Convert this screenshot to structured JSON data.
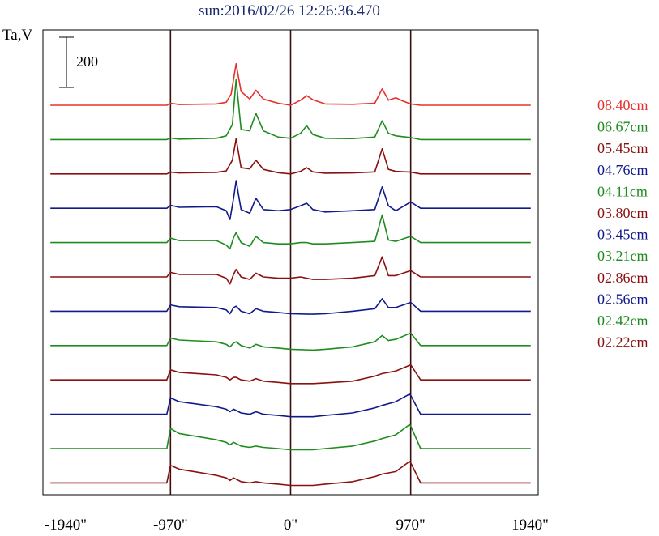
{
  "chart_data": {
    "type": "line",
    "title": "sun:2016/02/26 12:26:36.470",
    "ylabel": "Ta,V",
    "scale_bar_label": "200",
    "xlim": [
      -2000,
      2000
    ],
    "x_ticks": [
      {
        "value": -1940,
        "label": "-1940\""
      },
      {
        "value": -970,
        "label": "-970\""
      },
      {
        "value": 0,
        "label": "0\""
      },
      {
        "value": 970,
        "label": "970\""
      },
      {
        "value": 1940,
        "label": "1940\""
      }
    ],
    "vertical_markers": [
      -970,
      0,
      970
    ],
    "grid": false,
    "legend_position": "right",
    "series": [
      {
        "name": "08.40cm",
        "color": "#e8302a",
        "points": [
          [
            -1940,
            0
          ],
          [
            -1000,
            0
          ],
          [
            -970,
            8
          ],
          [
            -900,
            3
          ],
          [
            -600,
            5
          ],
          [
            -520,
            12
          ],
          [
            -480,
            45
          ],
          [
            -440,
            165
          ],
          [
            -400,
            55
          ],
          [
            -330,
            25
          ],
          [
            -280,
            60
          ],
          [
            -220,
            25
          ],
          [
            -100,
            8
          ],
          [
            0,
            0
          ],
          [
            80,
            20
          ],
          [
            130,
            38
          ],
          [
            180,
            22
          ],
          [
            280,
            5
          ],
          [
            500,
            4
          ],
          [
            680,
            8
          ],
          [
            740,
            65
          ],
          [
            790,
            20
          ],
          [
            850,
            30
          ],
          [
            900,
            18
          ],
          [
            970,
            5
          ],
          [
            1050,
            0
          ],
          [
            1940,
            0
          ]
        ]
      },
      {
        "name": "06.67cm",
        "color": "#1e8c1e",
        "points": [
          [
            -1940,
            0
          ],
          [
            -1000,
            0
          ],
          [
            -970,
            6
          ],
          [
            -900,
            2
          ],
          [
            -600,
            5
          ],
          [
            -520,
            15
          ],
          [
            -470,
            60
          ],
          [
            -440,
            240
          ],
          [
            -400,
            40
          ],
          [
            -330,
            35
          ],
          [
            -280,
            105
          ],
          [
            -220,
            35
          ],
          [
            -100,
            10
          ],
          [
            0,
            5
          ],
          [
            80,
            25
          ],
          [
            130,
            55
          ],
          [
            180,
            20
          ],
          [
            280,
            5
          ],
          [
            500,
            4
          ],
          [
            680,
            10
          ],
          [
            740,
            75
          ],
          [
            790,
            25
          ],
          [
            850,
            15
          ],
          [
            970,
            8
          ],
          [
            1050,
            0
          ],
          [
            1940,
            0
          ]
        ]
      },
      {
        "name": "05.45cm",
        "color": "#8a1010",
        "points": [
          [
            -1940,
            0
          ],
          [
            -1000,
            0
          ],
          [
            -970,
            7
          ],
          [
            -900,
            4
          ],
          [
            -600,
            6
          ],
          [
            -520,
            12
          ],
          [
            -470,
            55
          ],
          [
            -440,
            140
          ],
          [
            -400,
            25
          ],
          [
            -330,
            20
          ],
          [
            -280,
            55
          ],
          [
            -220,
            18
          ],
          [
            -100,
            5
          ],
          [
            0,
            0
          ],
          [
            80,
            10
          ],
          [
            130,
            25
          ],
          [
            180,
            8
          ],
          [
            280,
            3
          ],
          [
            500,
            4
          ],
          [
            680,
            8
          ],
          [
            740,
            100
          ],
          [
            790,
            18
          ],
          [
            850,
            10
          ],
          [
            970,
            7
          ],
          [
            1050,
            0
          ],
          [
            1940,
            0
          ]
        ]
      },
      {
        "name": "04.76cm",
        "color": "#101a8a",
        "points": [
          [
            -1940,
            0
          ],
          [
            -1000,
            0
          ],
          [
            -970,
            12
          ],
          [
            -900,
            4
          ],
          [
            -600,
            6
          ],
          [
            -520,
            -10
          ],
          [
            -490,
            -45
          ],
          [
            -460,
            40
          ],
          [
            -440,
            110
          ],
          [
            -400,
            -5
          ],
          [
            -330,
            -20
          ],
          [
            -280,
            40
          ],
          [
            -220,
            -5
          ],
          [
            -100,
            -10
          ],
          [
            0,
            -5
          ],
          [
            80,
            10
          ],
          [
            130,
            20
          ],
          [
            180,
            -5
          ],
          [
            280,
            -15
          ],
          [
            500,
            -10
          ],
          [
            680,
            -5
          ],
          [
            740,
            85
          ],
          [
            790,
            10
          ],
          [
            850,
            -10
          ],
          [
            970,
            25
          ],
          [
            1050,
            0
          ],
          [
            1940,
            0
          ]
        ]
      },
      {
        "name": "04.11cm",
        "color": "#1e8c1e",
        "points": [
          [
            -1940,
            0
          ],
          [
            -1000,
            0
          ],
          [
            -970,
            18
          ],
          [
            -900,
            8
          ],
          [
            -600,
            8
          ],
          [
            -520,
            -10
          ],
          [
            -490,
            -25
          ],
          [
            -460,
            20
          ],
          [
            -440,
            40
          ],
          [
            -400,
            0
          ],
          [
            -330,
            -15
          ],
          [
            -280,
            25
          ],
          [
            -220,
            0
          ],
          [
            -100,
            -5
          ],
          [
            0,
            -5
          ],
          [
            80,
            0
          ],
          [
            130,
            0
          ],
          [
            180,
            -5
          ],
          [
            280,
            -5
          ],
          [
            500,
            0
          ],
          [
            680,
            5
          ],
          [
            740,
            110
          ],
          [
            790,
            10
          ],
          [
            850,
            5
          ],
          [
            970,
            25
          ],
          [
            1050,
            0
          ],
          [
            1940,
            0
          ]
        ]
      },
      {
        "name": "03.80cm",
        "color": "#8a1010",
        "points": [
          [
            -1940,
            0
          ],
          [
            -1000,
            0
          ],
          [
            -970,
            18
          ],
          [
            -900,
            10
          ],
          [
            -600,
            10
          ],
          [
            -520,
            -5
          ],
          [
            -490,
            -28
          ],
          [
            -460,
            10
          ],
          [
            -440,
            30
          ],
          [
            -400,
            0
          ],
          [
            -330,
            -10
          ],
          [
            -280,
            15
          ],
          [
            -220,
            0
          ],
          [
            -100,
            -5
          ],
          [
            0,
            -5
          ],
          [
            80,
            0
          ],
          [
            180,
            -10
          ],
          [
            280,
            -10
          ],
          [
            500,
            -5
          ],
          [
            680,
            5
          ],
          [
            740,
            80
          ],
          [
            790,
            5
          ],
          [
            850,
            5
          ],
          [
            970,
            25
          ],
          [
            1050,
            0
          ],
          [
            1940,
            0
          ]
        ]
      },
      {
        "name": "03.45cm",
        "color": "#101a8a",
        "points": [
          [
            -1940,
            0
          ],
          [
            -1000,
            0
          ],
          [
            -970,
            25
          ],
          [
            -900,
            18
          ],
          [
            -600,
            15
          ],
          [
            -520,
            5
          ],
          [
            -490,
            -10
          ],
          [
            -460,
            15
          ],
          [
            -440,
            20
          ],
          [
            -400,
            0
          ],
          [
            -330,
            -10
          ],
          [
            -280,
            10
          ],
          [
            -220,
            0
          ],
          [
            -100,
            -5
          ],
          [
            0,
            -10
          ],
          [
            180,
            -12
          ],
          [
            280,
            -10
          ],
          [
            500,
            0
          ],
          [
            680,
            10
          ],
          [
            740,
            50
          ],
          [
            790,
            15
          ],
          [
            850,
            15
          ],
          [
            970,
            35
          ],
          [
            1050,
            0
          ],
          [
            1940,
            0
          ]
        ]
      },
      {
        "name": "03.21cm",
        "color": "#1e8c1e",
        "points": [
          [
            -1940,
            0
          ],
          [
            -1000,
            0
          ],
          [
            -970,
            30
          ],
          [
            -900,
            22
          ],
          [
            -600,
            15
          ],
          [
            -520,
            5
          ],
          [
            -490,
            -5
          ],
          [
            -460,
            10
          ],
          [
            -440,
            15
          ],
          [
            -400,
            0
          ],
          [
            -330,
            -10
          ],
          [
            -280,
            5
          ],
          [
            -220,
            -5
          ],
          [
            -100,
            -10
          ],
          [
            0,
            -15
          ],
          [
            180,
            -18
          ],
          [
            280,
            -15
          ],
          [
            500,
            -5
          ],
          [
            680,
            15
          ],
          [
            740,
            40
          ],
          [
            790,
            20
          ],
          [
            850,
            25
          ],
          [
            970,
            50
          ],
          [
            1050,
            0
          ],
          [
            1940,
            0
          ]
        ]
      },
      {
        "name": "02.86cm",
        "color": "#8a1010",
        "points": [
          [
            -1940,
            0
          ],
          [
            -1000,
            0
          ],
          [
            -970,
            40
          ],
          [
            -900,
            30
          ],
          [
            -600,
            20
          ],
          [
            -520,
            10
          ],
          [
            -490,
            0
          ],
          [
            -460,
            10
          ],
          [
            -440,
            10
          ],
          [
            -400,
            0
          ],
          [
            -330,
            -5
          ],
          [
            -280,
            5
          ],
          [
            -220,
            -5
          ],
          [
            -100,
            -10
          ],
          [
            0,
            -15
          ],
          [
            180,
            -15
          ],
          [
            280,
            -12
          ],
          [
            500,
            -5
          ],
          [
            680,
            15
          ],
          [
            740,
            25
          ],
          [
            850,
            35
          ],
          [
            970,
            60
          ],
          [
            1050,
            0
          ],
          [
            1940,
            0
          ]
        ]
      },
      {
        "name": "02.56cm",
        "color": "#101a8a",
        "points": [
          [
            -1940,
            0
          ],
          [
            -1000,
            0
          ],
          [
            -970,
            65
          ],
          [
            -900,
            50
          ],
          [
            -600,
            30
          ],
          [
            -520,
            20
          ],
          [
            -490,
            10
          ],
          [
            -460,
            20
          ],
          [
            -440,
            15
          ],
          [
            -400,
            5
          ],
          [
            -330,
            0
          ],
          [
            -280,
            10
          ],
          [
            -220,
            0
          ],
          [
            -100,
            -5
          ],
          [
            0,
            -10
          ],
          [
            180,
            -10
          ],
          [
            280,
            -5
          ],
          [
            500,
            5
          ],
          [
            680,
            25
          ],
          [
            740,
            35
          ],
          [
            850,
            50
          ],
          [
            960,
            80
          ],
          [
            970,
            75
          ],
          [
            1050,
            0
          ],
          [
            1940,
            0
          ]
        ]
      },
      {
        "name": "02.42cm",
        "color": "#1e8c1e",
        "points": [
          [
            -1940,
            0
          ],
          [
            -1000,
            0
          ],
          [
            -970,
            80
          ],
          [
            -900,
            60
          ],
          [
            -600,
            35
          ],
          [
            -520,
            25
          ],
          [
            -490,
            15
          ],
          [
            -460,
            25
          ],
          [
            -440,
            20
          ],
          [
            -400,
            10
          ],
          [
            -330,
            5
          ],
          [
            -280,
            10
          ],
          [
            -220,
            5
          ],
          [
            -100,
            0
          ],
          [
            0,
            -5
          ],
          [
            180,
            -5
          ],
          [
            280,
            0
          ],
          [
            500,
            10
          ],
          [
            680,
            30
          ],
          [
            740,
            40
          ],
          [
            850,
            55
          ],
          [
            960,
            95
          ],
          [
            970,
            90
          ],
          [
            1050,
            0
          ],
          [
            1940,
            0
          ]
        ]
      },
      {
        "name": "02.22cm",
        "color": "#8a1010",
        "points": [
          [
            -1940,
            0
          ],
          [
            -1000,
            0
          ],
          [
            -970,
            70
          ],
          [
            -900,
            55
          ],
          [
            -600,
            30
          ],
          [
            -520,
            20
          ],
          [
            -490,
            10
          ],
          [
            -460,
            20
          ],
          [
            -440,
            15
          ],
          [
            -400,
            5
          ],
          [
            -330,
            0
          ],
          [
            -280,
            5
          ],
          [
            -220,
            0
          ],
          [
            -100,
            -5
          ],
          [
            0,
            -10
          ],
          [
            180,
            -10
          ],
          [
            280,
            -5
          ],
          [
            500,
            5
          ],
          [
            680,
            25
          ],
          [
            740,
            35
          ],
          [
            850,
            45
          ],
          [
            960,
            85
          ],
          [
            970,
            80
          ],
          [
            1050,
            0
          ],
          [
            1940,
            0
          ]
        ]
      }
    ]
  }
}
